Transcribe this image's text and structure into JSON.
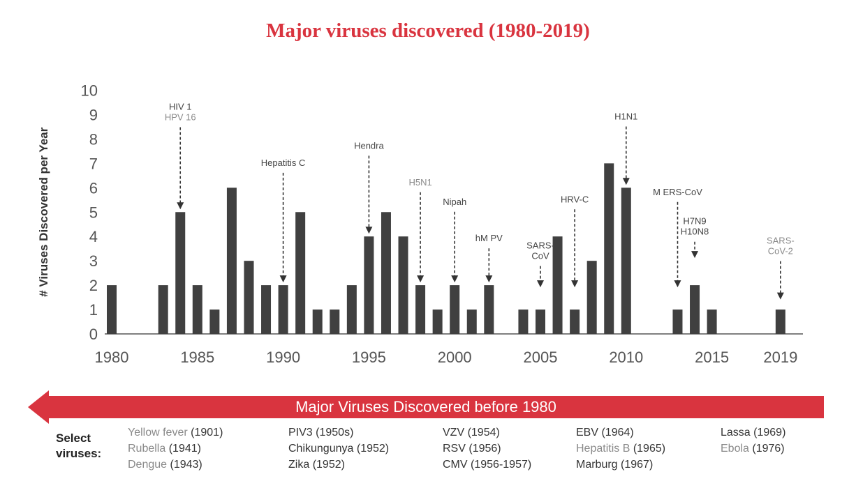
{
  "colors": {
    "bar": "#404040",
    "accent": "#d9343f",
    "axis": "#555555",
    "note_dark": "#444444",
    "note_grey": "#8a8a8a"
  },
  "chart_data": {
    "type": "bar",
    "title": "Major viruses discovered (1980-2019)",
    "ylabel": "# Viruses Discovered per Year",
    "xlabel": "",
    "ylim": [
      0,
      10
    ],
    "yticks": [
      0,
      1,
      2,
      3,
      4,
      5,
      6,
      7,
      8,
      9,
      10
    ],
    "xticks": [
      1980,
      1985,
      1990,
      1995,
      2000,
      2005,
      2010,
      2015,
      2019
    ],
    "bars": [
      {
        "x": 1980,
        "y": 2
      },
      {
        "x": 1983,
        "y": 2
      },
      {
        "x": 1984,
        "y": 5
      },
      {
        "x": 1985,
        "y": 2
      },
      {
        "x": 1986,
        "y": 1
      },
      {
        "x": 1987,
        "y": 6
      },
      {
        "x": 1988,
        "y": 3
      },
      {
        "x": 1989,
        "y": 2
      },
      {
        "x": 1990,
        "y": 2
      },
      {
        "x": 1991,
        "y": 5
      },
      {
        "x": 1992,
        "y": 1
      },
      {
        "x": 1993,
        "y": 1
      },
      {
        "x": 1994,
        "y": 2
      },
      {
        "x": 1995,
        "y": 4
      },
      {
        "x": 1996,
        "y": 5
      },
      {
        "x": 1997,
        "y": 4
      },
      {
        "x": 1998,
        "y": 2
      },
      {
        "x": 1999,
        "y": 1
      },
      {
        "x": 2000,
        "y": 2
      },
      {
        "x": 2001,
        "y": 1
      },
      {
        "x": 2002,
        "y": 2
      },
      {
        "x": 2004,
        "y": 1
      },
      {
        "x": 2005,
        "y": 1
      },
      {
        "x": 2006,
        "y": 4
      },
      {
        "x": 2007,
        "y": 1
      },
      {
        "x": 2008,
        "y": 3
      },
      {
        "x": 2009,
        "y": 7
      },
      {
        "x": 2010,
        "y": 6
      },
      {
        "x": 2013,
        "y": 1
      },
      {
        "x": 2014,
        "y": 2
      },
      {
        "x": 2015,
        "y": 1
      },
      {
        "x": 2019,
        "y": 1
      }
    ],
    "annotations": [
      {
        "year": 1984,
        "lines": [
          {
            "text": "HIV 1",
            "tone": "dark"
          },
          {
            "text": "HPV 16",
            "tone": "grey"
          }
        ],
        "label_y": 9.2,
        "arrow_to": 5
      },
      {
        "year": 1990,
        "lines": [
          {
            "text": "Hepatitis C",
            "tone": "dark"
          }
        ],
        "label_y": 6.9,
        "arrow_to": 2
      },
      {
        "year": 1995,
        "lines": [
          {
            "text": "Hendra",
            "tone": "dark"
          }
        ],
        "label_y": 7.6,
        "arrow_to": 4
      },
      {
        "year": 1998,
        "lines": [
          {
            "text": "H5N1",
            "tone": "grey"
          }
        ],
        "label_y": 6.1,
        "arrow_to": 2
      },
      {
        "year": 2000,
        "lines": [
          {
            "text": "Nipah",
            "tone": "dark"
          }
        ],
        "label_y": 5.3,
        "arrow_to": 2
      },
      {
        "year": 2002,
        "lines": [
          {
            "text": "hM PV",
            "tone": "dark"
          }
        ],
        "label_y": 3.8,
        "arrow_to": 2
      },
      {
        "year": 2005,
        "lines": [
          {
            "text": "SARS-",
            "tone": "dark"
          },
          {
            "text": "CoV",
            "tone": "dark"
          }
        ],
        "label_y": 3.5,
        "arrow_to": 1.8
      },
      {
        "year": 2007,
        "lines": [
          {
            "text": "HRV-C",
            "tone": "dark"
          }
        ],
        "label_y": 5.4,
        "arrow_to": 1.8
      },
      {
        "year": 2010,
        "lines": [
          {
            "text": "H1N1",
            "tone": "dark"
          }
        ],
        "label_y": 8.8,
        "arrow_to": 6
      },
      {
        "year": 2013,
        "lines": [
          {
            "text": "M ERS-CoV",
            "tone": "dark"
          }
        ],
        "label_y": 5.7,
        "arrow_to": 1.8
      },
      {
        "year": 2014,
        "lines": [
          {
            "text": "H7N9",
            "tone": "dark"
          },
          {
            "text": "H10N8",
            "tone": "dark"
          }
        ],
        "label_y": 4.5,
        "arrow_to": 3
      },
      {
        "year": 2019,
        "lines": [
          {
            "text": "SARS-",
            "tone": "grey"
          },
          {
            "text": "CoV-2",
            "tone": "grey"
          }
        ],
        "label_y": 3.7,
        "arrow_to": 1.3
      }
    ]
  },
  "banner": {
    "text": "Major Viruses Discovered before 1980"
  },
  "select_viruses": {
    "label_line1": "Select",
    "label_line2": "viruses:",
    "columns": [
      [
        {
          "name": "Yellow fever",
          "year": "(1901)",
          "tone": "grey"
        },
        {
          "name": "Rubella",
          "year": "(1941)",
          "tone": "grey"
        },
        {
          "name": "Dengue",
          "year": "(1943)",
          "tone": "grey"
        }
      ],
      [
        {
          "name": "PIV3",
          "year": "(1950s)",
          "tone": "dark"
        },
        {
          "name": "Chikungunya",
          "year": "(1952)",
          "tone": "dark"
        },
        {
          "name": "Zika",
          "year": "(1952)",
          "tone": "dark"
        }
      ],
      [
        {
          "name": "VZV",
          "year": "(1954)",
          "tone": "dark"
        },
        {
          "name": "RSV",
          "year": "(1956)",
          "tone": "dark"
        },
        {
          "name": "CMV",
          "year": "(1956-1957)",
          "tone": "dark"
        }
      ],
      [
        {
          "name": "EBV",
          "year": "(1964)",
          "tone": "dark"
        },
        {
          "name": "Hepatitis B",
          "year": "(1965)",
          "tone": "grey"
        },
        {
          "name": "Marburg",
          "year": "(1967)",
          "tone": "dark"
        }
      ],
      [
        {
          "name": "Lassa",
          "year": "(1969)",
          "tone": "dark"
        },
        {
          "name": "Ebola",
          "year": "(1976)",
          "tone": "grey"
        }
      ]
    ]
  }
}
